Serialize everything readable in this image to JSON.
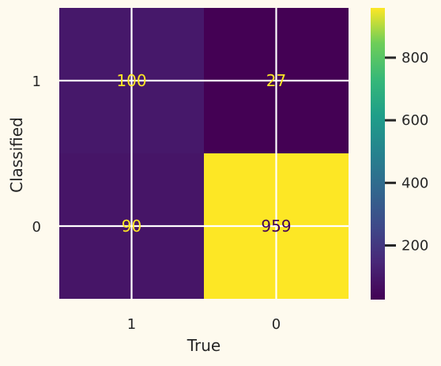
{
  "chart_data": {
    "type": "heatmap",
    "title": "",
    "xlabel": "True",
    "ylabel": "Classified",
    "x_categories": [
      "1",
      "0"
    ],
    "y_categories": [
      "1",
      "0"
    ],
    "values": [
      [
        100,
        27
      ],
      [
        90,
        959
      ]
    ],
    "grid": true,
    "colormap": "viridis",
    "colorbar": {
      "ticks": [
        200,
        400,
        600,
        800
      ],
      "range": [
        27,
        959
      ]
    }
  }
}
